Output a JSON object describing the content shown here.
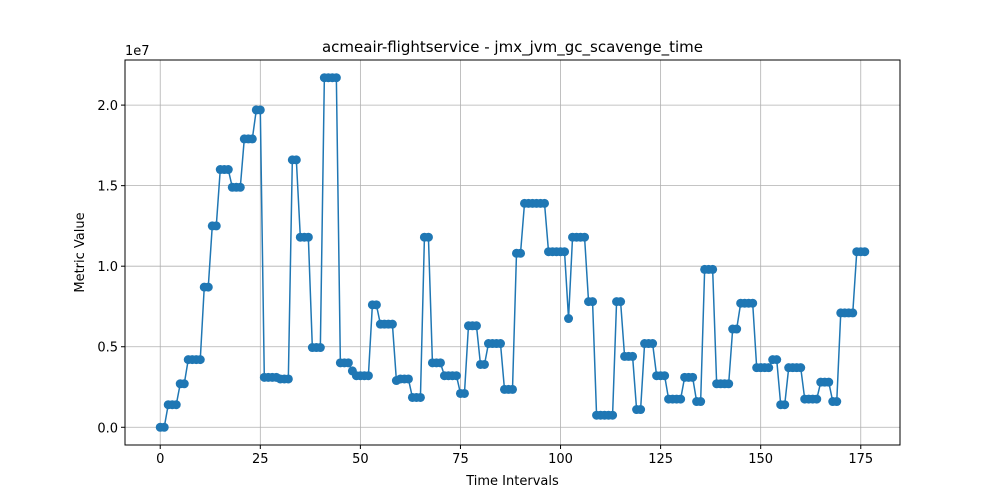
{
  "chart_data": {
    "type": "line",
    "title": "acmeair-flightservice - jmx_jvm_gc_scavenge_time",
    "xlabel": "Time Intervals",
    "ylabel": "Metric Value",
    "y_multiplier_label": "1e7",
    "xlim": [
      -8.8,
      184.8
    ],
    "ylim": [
      -1100000,
      22800000
    ],
    "x_ticks": [
      0,
      25,
      50,
      75,
      100,
      125,
      150,
      175
    ],
    "x_tick_labels": [
      "0",
      "25",
      "50",
      "75",
      "100",
      "125",
      "150",
      "175"
    ],
    "y_ticks": [
      0,
      5000000,
      10000000,
      15000000,
      20000000
    ],
    "y_tick_labels": [
      "0.0",
      "0.5",
      "1.0",
      "1.5",
      "2.0"
    ],
    "grid": true,
    "series": [
      {
        "color": "#1f77b4",
        "marker": "circle",
        "x": [
          0,
          1,
          2,
          3,
          4,
          5,
          6,
          7,
          8,
          9,
          10,
          11,
          12,
          13,
          14,
          15,
          16,
          17,
          18,
          19,
          20,
          21,
          22,
          23,
          24,
          25,
          26,
          27,
          28,
          29,
          30,
          31,
          32,
          33,
          34,
          35,
          36,
          37,
          38,
          39,
          40,
          41,
          42,
          43,
          44,
          45,
          46,
          47,
          48,
          49,
          50,
          51,
          52,
          53,
          54,
          55,
          56,
          57,
          58,
          59,
          60,
          61,
          62,
          63,
          64,
          65,
          66,
          67,
          68,
          69,
          70,
          71,
          72,
          73,
          74,
          75,
          76,
          77,
          78,
          79,
          80,
          81,
          82,
          83,
          84,
          85,
          86,
          87,
          88,
          89,
          90,
          91,
          92,
          93,
          94,
          95,
          96,
          97,
          98,
          99,
          100,
          101,
          102,
          103,
          104,
          105,
          106,
          107,
          108,
          109,
          110,
          111,
          112,
          113,
          114,
          115,
          116,
          117,
          118,
          119,
          120,
          121,
          122,
          123,
          124,
          125,
          126,
          127,
          128,
          129,
          130,
          131,
          132,
          133,
          134,
          135,
          136,
          137,
          138,
          139,
          140,
          141,
          142,
          143,
          144,
          145,
          146,
          147,
          148,
          149,
          150,
          151,
          152,
          153,
          154,
          155,
          156,
          157,
          158,
          159,
          160,
          161,
          162,
          163,
          164,
          165,
          166,
          167,
          168,
          169,
          170,
          171,
          172,
          173,
          174,
          175,
          176
        ],
        "y": [
          0,
          0,
          1400000,
          1400000,
          1400000,
          2700000,
          2700000,
          4200000,
          4200000,
          4200000,
          4200000,
          8700000,
          8700000,
          12500000,
          12500000,
          16000000,
          16000000,
          16000000,
          14900000,
          14900000,
          14900000,
          17900000,
          17900000,
          17900000,
          19700000,
          19700000,
          3100000,
          3100000,
          3100000,
          3100000,
          3000000,
          3000000,
          3000000,
          16600000,
          16600000,
          11800000,
          11800000,
          11800000,
          4950000,
          4950000,
          4950000,
          21700000,
          21700000,
          21700000,
          21700000,
          4000000,
          4000000,
          4000000,
          3500000,
          3200000,
          3200000,
          3200000,
          3200000,
          7600000,
          7600000,
          6400000,
          6400000,
          6400000,
          6400000,
          2900000,
          3000000,
          3000000,
          3000000,
          1850000,
          1850000,
          1850000,
          11800000,
          11800000,
          4000000,
          4000000,
          4000000,
          3200000,
          3200000,
          3200000,
          3200000,
          2100000,
          2100000,
          6300000,
          6300000,
          6300000,
          3900000,
          3900000,
          5200000,
          5200000,
          5200000,
          5200000,
          2350000,
          2350000,
          2350000,
          10800000,
          10800000,
          13900000,
          13900000,
          13900000,
          13900000,
          13900000,
          13900000,
          10900000,
          10900000,
          10900000,
          10900000,
          10900000,
          6750000,
          11800000,
          11800000,
          11800000,
          11800000,
          7800000,
          7800000,
          750000,
          750000,
          750000,
          750000,
          750000,
          7800000,
          7800000,
          4400000,
          4400000,
          4400000,
          1100000,
          1100000,
          5200000,
          5200000,
          5200000,
          3200000,
          3200000,
          3200000,
          1750000,
          1750000,
          1750000,
          1750000,
          3100000,
          3100000,
          3100000,
          1600000,
          1600000,
          9800000,
          9800000,
          9800000,
          2700000,
          2700000,
          2700000,
          2700000,
          6100000,
          6100000,
          7700000,
          7700000,
          7700000,
          7700000,
          3700000,
          3700000,
          3700000,
          3700000,
          4200000,
          4200000,
          1400000,
          1400000,
          3700000,
          3700000,
          3700000,
          3700000,
          1750000,
          1750000,
          1750000,
          1750000,
          2800000,
          2800000,
          2800000,
          1600000,
          1600000,
          7100000,
          7100000,
          7100000,
          7100000,
          10900000,
          10900000,
          10900000
        ]
      }
    ]
  }
}
